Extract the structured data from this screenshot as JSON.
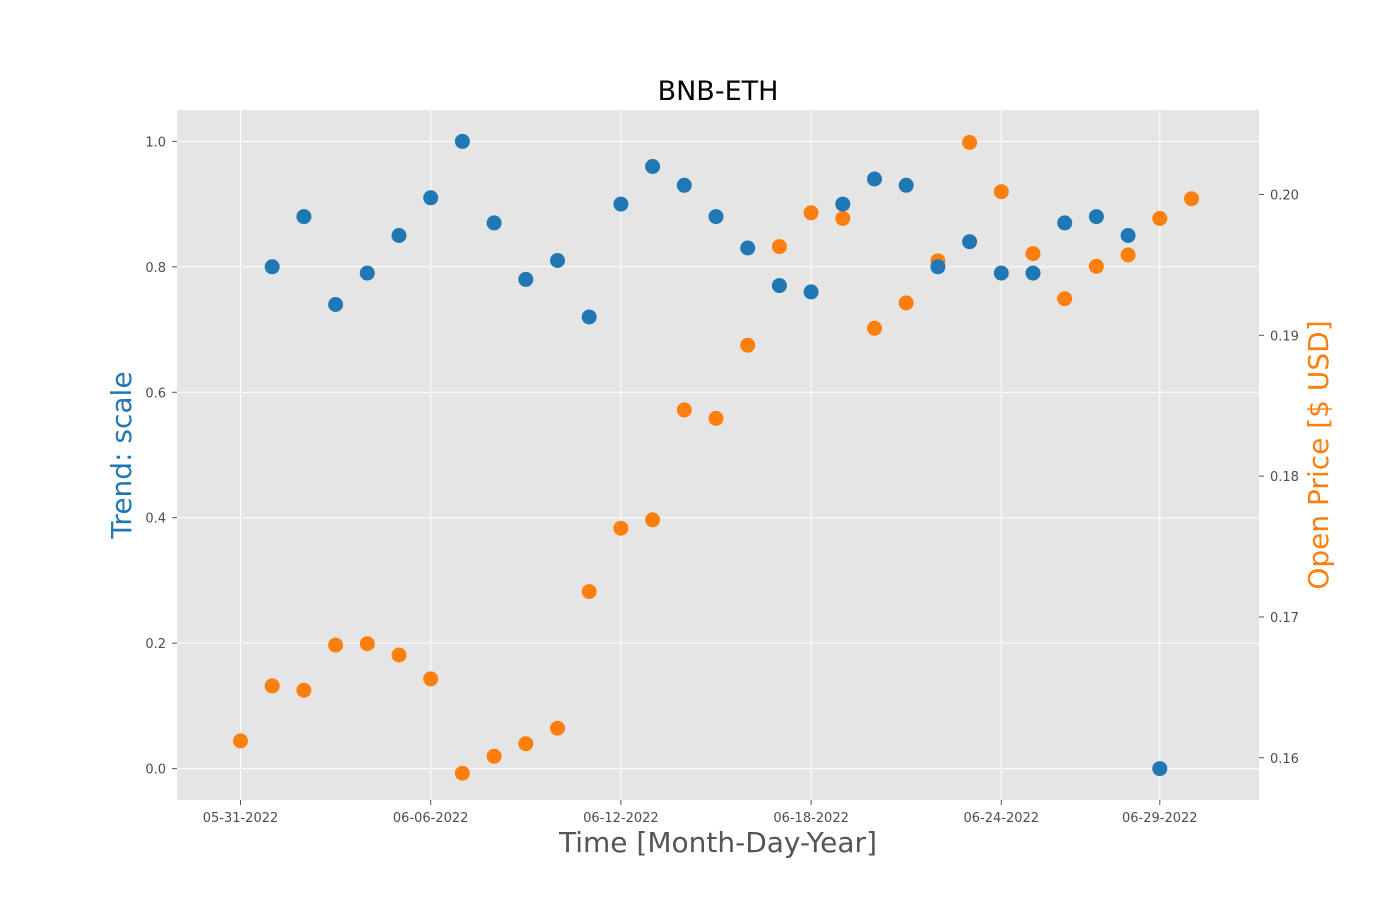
{
  "chart_data": {
    "type": "scatter",
    "title": "BNB-ETH",
    "xlabel": "Time [Month-Day-Year]",
    "ylabel_left": "Trend: scale",
    "ylabel_right": "Open Price [$ USD]",
    "x_ticks": [
      "05-31-2022",
      "06-06-2022",
      "06-12-2022",
      "06-18-2022",
      "06-24-2022",
      "06-29-2022"
    ],
    "left_y_ticks": [
      "0.0",
      "0.2",
      "0.4",
      "0.6",
      "0.8",
      "1.0"
    ],
    "right_y_ticks": [
      "0.16",
      "0.17",
      "0.18",
      "0.19",
      "0.20"
    ],
    "left_ylim": [
      -0.05,
      1.05
    ],
    "right_ylim": [
      0.157,
      0.206
    ],
    "grid": true,
    "background": "#e5e5e5",
    "colors": {
      "trend": "#1f77b4",
      "price": "#ff7f0e"
    },
    "series": [
      {
        "axis": "left",
        "color": "#1f77b4",
        "x": [
          "06-01-2022",
          "06-02-2022",
          "06-03-2022",
          "06-04-2022",
          "06-05-2022",
          "06-06-2022",
          "06-07-2022",
          "06-08-2022",
          "06-09-2022",
          "06-10-2022",
          "06-11-2022",
          "06-12-2022",
          "06-13-2022",
          "06-14-2022",
          "06-15-2022",
          "06-16-2022",
          "06-17-2022",
          "06-18-2022",
          "06-19-2022",
          "06-20-2022",
          "06-21-2022",
          "06-22-2022",
          "06-23-2022",
          "06-24-2022",
          "06-25-2022",
          "06-26-2022",
          "06-27-2022",
          "06-28-2022",
          "06-29-2022"
        ],
        "values": [
          0.8,
          0.88,
          0.74,
          0.79,
          0.85,
          0.91,
          1.0,
          0.87,
          0.78,
          0.81,
          0.72,
          0.9,
          0.96,
          0.93,
          0.88,
          0.83,
          0.77,
          0.76,
          0.9,
          0.94,
          0.93,
          0.8,
          0.84,
          0.79,
          0.79,
          0.87,
          0.88,
          0.85,
          0.0
        ]
      },
      {
        "axis": "right",
        "color": "#ff7f0e",
        "x": [
          "05-31-2022",
          "06-01-2022",
          "06-02-2022",
          "06-03-2022",
          "06-04-2022",
          "06-05-2022",
          "06-06-2022",
          "06-07-2022",
          "06-08-2022",
          "06-09-2022",
          "06-10-2022",
          "06-11-2022",
          "06-12-2022",
          "06-13-2022",
          "06-14-2022",
          "06-15-2022",
          "06-16-2022",
          "06-17-2022",
          "06-18-2022",
          "06-19-2022",
          "06-20-2022",
          "06-21-2022",
          "06-22-2022",
          "06-23-2022",
          "06-24-2022",
          "06-25-2022",
          "06-26-2022",
          "06-27-2022",
          "06-28-2022",
          "06-29-2022",
          "06-30-2022"
        ],
        "values": [
          0.1612,
          0.1651,
          0.1648,
          0.168,
          0.1681,
          0.1673,
          0.1656,
          0.1589,
          0.1601,
          0.161,
          0.1621,
          0.1718,
          0.1763,
          0.1769,
          0.1847,
          0.1841,
          0.1893,
          0.1963,
          0.1987,
          0.1983,
          0.1905,
          0.1923,
          0.1953,
          0.2037,
          0.2002,
          0.1958,
          0.1926,
          0.1949,
          0.1957,
          0.1983,
          0.1997
        ]
      }
    ]
  }
}
